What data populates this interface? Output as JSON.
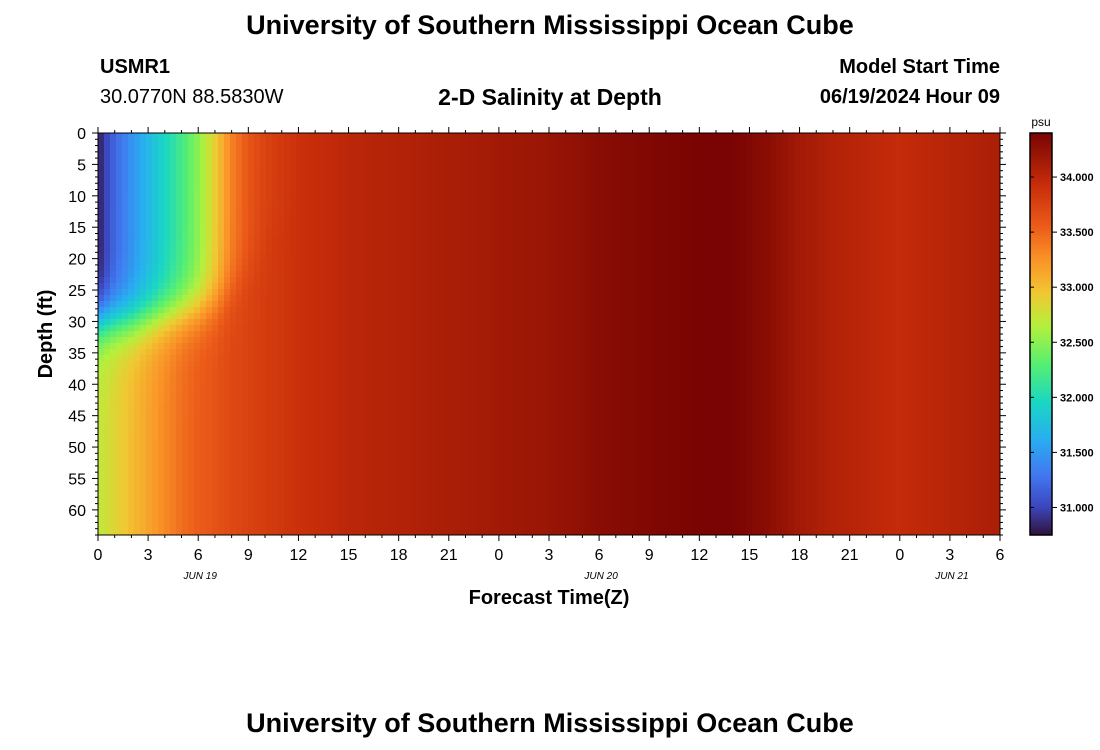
{
  "header": {
    "title": "University of Southern Mississippi Ocean Cube",
    "station_id": "USMR1",
    "coordinates": "30.0770N  88.5830W",
    "start_label": "Model Start Time",
    "start_value": "06/19/2024 Hour 09"
  },
  "footer": {
    "title": "University of Southern Mississippi Ocean Cube"
  },
  "chart_data": {
    "type": "heatmap",
    "title": "2-D Salinity at Depth",
    "xlabel": "Forecast Time(Z)",
    "ylabel": "Depth (ft)",
    "x_ticks": [
      "0",
      "3",
      "6",
      "9",
      "12",
      "15",
      "18",
      "21",
      "0",
      "3",
      "6",
      "9",
      "12",
      "15",
      "18",
      "21",
      "0",
      "3",
      "6"
    ],
    "day_labels": [
      {
        "label": "JUN 19",
        "tick_index": 2
      },
      {
        "label": "JUN 20",
        "tick_index": 10
      },
      {
        "label": "JUN 21",
        "tick_index": 17
      }
    ],
    "x_range_hours": [
      0,
      54
    ],
    "y_ticks": [
      "0",
      "5",
      "10",
      "15",
      "20",
      "25",
      "30",
      "35",
      "40",
      "45",
      "50",
      "55",
      "60"
    ],
    "y_range_ft": [
      0,
      64
    ],
    "y_inverted": true,
    "colorbar": {
      "unit": "psu",
      "range": [
        30.75,
        34.4
      ],
      "ticks": [
        "31.000",
        "31.500",
        "32.000",
        "32.500",
        "33.000",
        "33.500",
        "34.000"
      ]
    },
    "surface_profile_psu": [
      [
        0,
        30.8
      ],
      [
        1,
        31.2
      ],
      [
        2,
        31.45
      ],
      [
        3,
        31.7
      ],
      [
        4,
        31.95
      ],
      [
        5,
        32.2
      ],
      [
        6,
        32.5
      ],
      [
        7,
        32.9
      ],
      [
        8,
        33.35
      ],
      [
        9,
        33.6
      ],
      [
        10,
        33.75
      ],
      [
        12,
        33.9
      ],
      [
        15,
        34.0
      ],
      [
        18,
        34.05
      ],
      [
        21,
        34.1
      ],
      [
        24,
        34.15
      ],
      [
        27,
        34.2
      ],
      [
        30,
        34.3
      ],
      [
        33,
        34.36
      ],
      [
        36,
        34.4
      ],
      [
        38,
        34.4
      ],
      [
        40,
        34.3
      ],
      [
        42,
        34.15
      ],
      [
        44,
        34.05
      ],
      [
        46,
        34.0
      ],
      [
        48,
        33.95
      ],
      [
        50,
        34.0
      ],
      [
        52,
        34.05
      ],
      [
        54,
        34.1
      ]
    ],
    "bottom_profile_psu": [
      [
        0,
        32.7
      ],
      [
        1,
        32.85
      ],
      [
        2,
        33.0
      ],
      [
        3,
        33.15
      ],
      [
        4,
        33.3
      ],
      [
        5,
        33.45
      ],
      [
        6,
        33.55
      ],
      [
        7,
        33.62
      ],
      [
        8,
        33.7
      ],
      [
        9,
        33.75
      ],
      [
        10,
        33.8
      ],
      [
        12,
        33.9
      ],
      [
        15,
        34.0
      ],
      [
        18,
        34.05
      ],
      [
        21,
        34.1
      ],
      [
        24,
        34.15
      ],
      [
        27,
        34.2
      ],
      [
        30,
        34.3
      ],
      [
        33,
        34.36
      ],
      [
        36,
        34.4
      ],
      [
        38,
        34.4
      ],
      [
        40,
        34.3
      ],
      [
        42,
        34.15
      ],
      [
        44,
        34.05
      ],
      [
        46,
        34.0
      ],
      [
        48,
        33.95
      ],
      [
        50,
        34.0
      ],
      [
        52,
        34.05
      ],
      [
        54,
        34.1
      ]
    ],
    "mixed_layer_depth_ft": [
      [
        0,
        30
      ],
      [
        2,
        30
      ],
      [
        4,
        29
      ],
      [
        6,
        28
      ],
      [
        7,
        27
      ],
      [
        8,
        25
      ],
      [
        9,
        22
      ],
      [
        10,
        18
      ],
      [
        12,
        10
      ],
      [
        14,
        2
      ],
      [
        15,
        0
      ]
    ],
    "transition_width_ft": 14
  }
}
